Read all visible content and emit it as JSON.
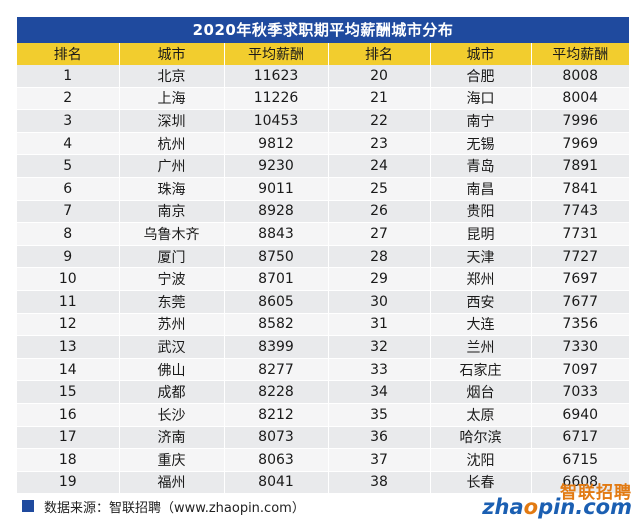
{
  "title": "2020年秋季求职期平均薪酬城市分布",
  "headers": [
    "排名",
    "城市",
    "平均薪酬",
    "排名",
    "城市",
    "平均薪酬"
  ],
  "rows": [
    [
      "1",
      "北京",
      "11623",
      "20",
      "合肥",
      "8008"
    ],
    [
      "2",
      "上海",
      "11226",
      "21",
      "海口",
      "8004"
    ],
    [
      "3",
      "深圳",
      "10453",
      "22",
      "南宁",
      "7996"
    ],
    [
      "4",
      "杭州",
      "9812",
      "23",
      "无锡",
      "7969"
    ],
    [
      "5",
      "广州",
      "9230",
      "24",
      "青岛",
      "7891"
    ],
    [
      "6",
      "珠海",
      "9011",
      "25",
      "南昌",
      "7841"
    ],
    [
      "7",
      "南京",
      "8928",
      "26",
      "贵阳",
      "7743"
    ],
    [
      "8",
      "乌鲁木齐",
      "8843",
      "27",
      "昆明",
      "7731"
    ],
    [
      "9",
      "厦门",
      "8750",
      "28",
      "天津",
      "7727"
    ],
    [
      "10",
      "宁波",
      "8701",
      "29",
      "郑州",
      "7697"
    ],
    [
      "11",
      "东莞",
      "8605",
      "30",
      "西安",
      "7677"
    ],
    [
      "12",
      "苏州",
      "8582",
      "31",
      "大连",
      "7356"
    ],
    [
      "13",
      "武汉",
      "8399",
      "32",
      "兰州",
      "7330"
    ],
    [
      "14",
      "佛山",
      "8277",
      "33",
      "石家庄",
      "7097"
    ],
    [
      "15",
      "成都",
      "8228",
      "34",
      "烟台",
      "7033"
    ],
    [
      "16",
      "长沙",
      "8212",
      "35",
      "太原",
      "6940"
    ],
    [
      "17",
      "济南",
      "8073",
      "36",
      "哈尔滨",
      "6717"
    ],
    [
      "18",
      "重庆",
      "8063",
      "37",
      "沈阳",
      "6715"
    ],
    [
      "19",
      "福州",
      "8041",
      "38",
      "长春",
      "6608"
    ]
  ],
  "footer": {
    "source": "数据来源：智联招聘（www.zhaopin.com）"
  },
  "logo": {
    "cn": "智联招聘",
    "en_pre": "zha",
    "en_o": "o",
    "en_post": "pin.com"
  },
  "colors": {
    "title_bg": "#1f4a9e",
    "header_bg": "#f2cd2e",
    "row_odd": "#e9eaec",
    "row_even": "#f5f5f6"
  }
}
